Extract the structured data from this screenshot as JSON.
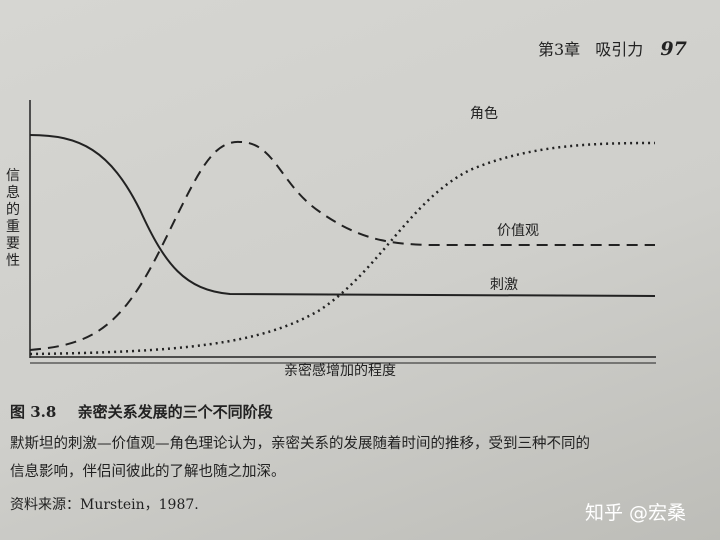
{
  "header": {
    "chapter": "第3章",
    "section": "吸引力",
    "page": "97"
  },
  "figure": {
    "y_axis_label": "信息的重要性",
    "x_axis_label": "亲密感增加的程度",
    "curve_labels": {
      "role": "角色",
      "values": "价值观",
      "stimulus": "刺激"
    }
  },
  "caption": {
    "number": "图 3.8",
    "title": "亲密关系发展的三个不同阶段"
  },
  "body": {
    "lines": [
      "默斯坦的刺激—价值观—角色理论认为，亲密关系的发展随着时间的推移，受到三种不同的",
      "信息影响，伴侣间彼此的了解也随之加深。"
    ]
  },
  "source": "资料来源：Murstein，1987.",
  "watermark": "知乎 @宏桑"
}
